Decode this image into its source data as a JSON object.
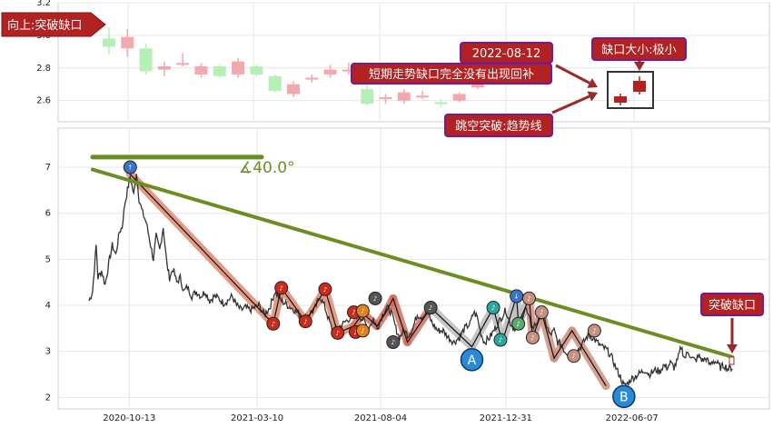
{
  "chart_data": [
    {
      "type": "candlestick",
      "panel": "top",
      "y_ticks": [
        "3.2",
        "3.0",
        "2.8",
        "2.6"
      ],
      "y_values": [
        3.2,
        3.0,
        2.8,
        2.6
      ],
      "ylim": [
        2.47,
        3.2
      ],
      "candles": [
        {
          "o": 2.98,
          "c": 2.93,
          "h": 3.05,
          "l": 2.88
        },
        {
          "o": 2.92,
          "c": 2.99,
          "h": 3.04,
          "l": 2.87
        },
        {
          "o": 2.92,
          "c": 2.78,
          "h": 2.95,
          "l": 2.76
        },
        {
          "o": 2.79,
          "c": 2.81,
          "h": 2.84,
          "l": 2.75
        },
        {
          "o": 2.82,
          "c": 2.83,
          "h": 2.89,
          "l": 2.81
        },
        {
          "o": 2.76,
          "c": 2.81,
          "h": 2.83,
          "l": 2.74
        },
        {
          "o": 2.81,
          "c": 2.75,
          "h": 2.82,
          "l": 2.74
        },
        {
          "o": 2.76,
          "c": 2.84,
          "h": 2.86,
          "l": 2.74
        },
        {
          "o": 2.81,
          "c": 2.76,
          "h": 2.82,
          "l": 2.75
        },
        {
          "o": 2.75,
          "c": 2.66,
          "h": 2.76,
          "l": 2.65
        },
        {
          "o": 2.64,
          "c": 2.7,
          "h": 2.72,
          "l": 2.62
        },
        {
          "o": 2.73,
          "c": 2.74,
          "h": 2.76,
          "l": 2.71
        },
        {
          "o": 2.76,
          "c": 2.79,
          "h": 2.82,
          "l": 2.74
        },
        {
          "o": 2.79,
          "c": 2.79,
          "h": 2.83,
          "l": 2.76
        },
        {
          "o": 2.67,
          "c": 2.58,
          "h": 2.7,
          "l": 2.57
        },
        {
          "o": 2.62,
          "c": 2.62,
          "h": 2.64,
          "l": 2.58
        },
        {
          "o": 2.6,
          "c": 2.65,
          "h": 2.67,
          "l": 2.58
        },
        {
          "o": 2.63,
          "c": 2.63,
          "h": 2.66,
          "l": 2.61
        },
        {
          "o": 2.59,
          "c": 2.58,
          "h": 2.61,
          "l": 2.56
        },
        {
          "o": 2.6,
          "c": 2.64,
          "h": 2.65,
          "l": 2.59
        },
        {
          "o": 2.68,
          "c": 2.73,
          "h": 2.76,
          "l": 2.67
        }
      ],
      "up_color": "#f4a7ad",
      "down_color": "#b6efb6"
    },
    {
      "type": "line",
      "panel": "bottom",
      "x_tick_labels": [
        "2020-10-13",
        "2021-03-10",
        "2021-08-04",
        "2021-12-31",
        "2022-06-07"
      ],
      "x_tick_index": [
        45,
        188,
        326,
        466,
        607
      ],
      "y_ticks": [
        "7",
        "6",
        "5",
        "4",
        "3",
        "2"
      ],
      "y_values": [
        7,
        6,
        5,
        4,
        3,
        2
      ],
      "ylim": [
        1.75,
        7.85
      ],
      "n": 720,
      "price_color": "#333333",
      "anchors": [
        [
          0,
          4.1
        ],
        [
          4,
          4.3
        ],
        [
          8,
          5.3
        ],
        [
          10,
          4.6
        ],
        [
          14,
          4.75
        ],
        [
          18,
          4.45
        ],
        [
          22,
          4.9
        ],
        [
          26,
          5.3
        ],
        [
          30,
          5.1
        ],
        [
          34,
          5.6
        ],
        [
          37,
          5.7
        ],
        [
          40,
          6.2
        ],
        [
          43,
          6.5
        ],
        [
          46,
          6.8
        ],
        [
          50,
          6.4
        ],
        [
          53,
          6.9
        ],
        [
          56,
          6.3
        ],
        [
          60,
          6.0
        ],
        [
          64,
          5.8
        ],
        [
          68,
          5.4
        ],
        [
          72,
          5.0
        ],
        [
          75,
          5.5
        ],
        [
          79,
          5.2
        ],
        [
          83,
          5.7
        ],
        [
          87,
          4.9
        ],
        [
          90,
          4.6
        ],
        [
          94,
          4.8
        ],
        [
          98,
          4.5
        ],
        [
          102,
          4.6
        ],
        [
          106,
          4.3
        ],
        [
          110,
          4.4
        ],
        [
          115,
          4.2
        ],
        [
          120,
          4.3
        ],
        [
          125,
          4.2
        ],
        [
          130,
          4.3
        ],
        [
          135,
          4.1
        ],
        [
          140,
          4.2
        ],
        [
          145,
          4.15
        ],
        [
          150,
          4.05
        ],
        [
          155,
          4.1
        ],
        [
          160,
          4.2
        ],
        [
          165,
          4.0
        ],
        [
          170,
          3.9
        ],
        [
          175,
          3.95
        ],
        [
          180,
          3.9
        ],
        [
          185,
          3.95
        ],
        [
          190,
          4.0
        ],
        [
          196,
          3.8
        ],
        [
          202,
          3.95
        ],
        [
          208,
          4.3
        ],
        [
          215,
          4.1
        ],
        [
          222,
          4.0
        ],
        [
          230,
          3.9
        ],
        [
          240,
          3.7
        ],
        [
          245,
          3.8
        ],
        [
          252,
          3.9
        ],
        [
          258,
          4.2
        ],
        [
          263,
          4.0
        ],
        [
          268,
          3.7
        ],
        [
          272,
          3.45
        ],
        [
          278,
          3.5
        ],
        [
          284,
          3.6
        ],
        [
          290,
          3.7
        ],
        [
          296,
          3.75
        ],
        [
          300,
          3.8
        ],
        [
          306,
          3.7
        ],
        [
          312,
          3.5
        ],
        [
          318,
          3.7
        ],
        [
          322,
          3.5
        ],
        [
          328,
          3.8
        ],
        [
          333,
          3.95
        ],
        [
          338,
          3.85
        ],
        [
          343,
          3.5
        ],
        [
          347,
          3.3
        ],
        [
          352,
          3.45
        ],
        [
          357,
          3.35
        ],
        [
          362,
          3.5
        ],
        [
          367,
          3.8
        ],
        [
          372,
          3.75
        ],
        [
          378,
          3.85
        ],
        [
          384,
          3.6
        ],
        [
          390,
          3.45
        ],
        [
          396,
          3.45
        ],
        [
          402,
          3.3
        ],
        [
          408,
          3.2
        ],
        [
          414,
          3.3
        ],
        [
          420,
          3.5
        ],
        [
          426,
          3.6
        ],
        [
          430,
          3.85
        ],
        [
          434,
          3.75
        ],
        [
          438,
          3.4
        ],
        [
          442,
          3.2
        ],
        [
          448,
          3.3
        ],
        [
          454,
          3.5
        ],
        [
          460,
          3.7
        ],
        [
          466,
          3.9
        ],
        [
          470,
          3.65
        ],
        [
          475,
          3.5
        ],
        [
          480,
          3.55
        ],
        [
          484,
          3.75
        ],
        [
          488,
          3.95
        ],
        [
          492,
          3.7
        ],
        [
          496,
          3.5
        ],
        [
          501,
          3.65
        ],
        [
          506,
          3.8
        ],
        [
          511,
          3.6
        ],
        [
          515,
          3.35
        ],
        [
          520,
          3.45
        ],
        [
          524,
          3.2
        ],
        [
          528,
          3.15
        ],
        [
          532,
          3.0
        ],
        [
          536,
          2.95
        ],
        [
          540,
          2.9
        ],
        [
          544,
          3.0
        ],
        [
          548,
          3.05
        ],
        [
          553,
          3.2
        ],
        [
          558,
          3.35
        ],
        [
          563,
          3.3
        ],
        [
          568,
          3.2
        ],
        [
          573,
          3.1
        ],
        [
          578,
          3.05
        ],
        [
          582,
          2.95
        ],
        [
          586,
          2.8
        ],
        [
          590,
          2.6
        ],
        [
          594,
          2.45
        ],
        [
          598,
          2.25
        ],
        [
          602,
          2.3
        ],
        [
          606,
          2.4
        ],
        [
          610,
          2.45
        ],
        [
          614,
          2.5
        ],
        [
          618,
          2.55
        ],
        [
          622,
          2.6
        ],
        [
          626,
          2.5
        ],
        [
          630,
          2.55
        ],
        [
          634,
          2.6
        ],
        [
          638,
          2.55
        ],
        [
          642,
          2.7
        ],
        [
          646,
          2.65
        ],
        [
          650,
          2.75
        ],
        [
          654,
          2.65
        ],
        [
          658,
          2.8
        ],
        [
          662,
          3.1
        ],
        [
          666,
          2.85
        ],
        [
          670,
          3.0
        ],
        [
          674,
          2.85
        ],
        [
          678,
          2.8
        ],
        [
          682,
          2.9
        ],
        [
          686,
          2.8
        ],
        [
          690,
          2.85
        ],
        [
          694,
          2.7
        ],
        [
          698,
          2.8
        ],
        [
          702,
          2.75
        ],
        [
          706,
          2.65
        ],
        [
          710,
          2.7
        ],
        [
          714,
          2.62
        ],
        [
          719,
          2.65
        ]
      ],
      "trendline": {
        "from": [
          4,
          6.95
        ],
        "to": [
          719,
          2.88
        ],
        "color": "#6b8e23"
      },
      "horizontal_line": {
        "from": [
          4,
          7.22
        ],
        "to": [
          193,
          7.22
        ],
        "color": "#6b8e23"
      },
      "angle_label": "∡40.0°",
      "zigzag": [
        [
          46,
          6.85
        ],
        [
          206,
          3.6
        ],
        [
          215,
          4.38
        ],
        [
          242,
          3.65
        ],
        [
          264,
          4.35
        ],
        [
          278,
          3.4
        ],
        [
          296,
          3.55
        ],
        [
          306,
          3.83
        ],
        [
          322,
          3.55
        ],
        [
          332,
          3.85
        ],
        [
          340,
          4.15
        ],
        [
          356,
          3.2
        ],
        [
          382,
          3.95
        ],
        [
          428,
          3.1
        ],
        [
          452,
          3.95
        ],
        [
          462,
          3.2
        ],
        [
          478,
          4.2
        ],
        [
          480,
          3.6
        ],
        [
          492,
          4.15
        ],
        [
          496,
          3.3
        ],
        [
          506,
          3.85
        ],
        [
          520,
          2.85
        ],
        [
          540,
          3.45
        ],
        [
          578,
          2.25
        ]
      ],
      "zigzag_band_colors": [
        "#e08a70",
        "#d07060",
        "#bdbdbd",
        "#d09080"
      ],
      "markers": [
        {
          "i": 46,
          "v": 7.0,
          "color": "#3a74c8",
          "label": "↑"
        },
        {
          "i": 206,
          "v": 3.6,
          "color": "#cc2a1a",
          "label": "♪"
        },
        {
          "i": 215,
          "v": 4.38,
          "color": "#cc2a1a",
          "label": "♪"
        },
        {
          "i": 242,
          "v": 3.65,
          "color": "#cc2a1a",
          "label": "♪"
        },
        {
          "i": 264,
          "v": 4.35,
          "color": "#cc2a1a",
          "label": "♪"
        },
        {
          "i": 278,
          "v": 3.4,
          "color": "#cc2a1a",
          "label": "♪"
        },
        {
          "i": 296,
          "v": 3.85,
          "color": "#cc2a1a",
          "label": "♪"
        },
        {
          "i": 298,
          "v": 3.42,
          "color": "#cc2a1a",
          "label": "♪"
        },
        {
          "i": 306,
          "v": 3.88,
          "color": "#e8801a",
          "label": "♪"
        },
        {
          "i": 306,
          "v": 3.45,
          "color": "#e8801a",
          "label": "♪"
        },
        {
          "i": 320,
          "v": 4.15,
          "color": "#555555",
          "label": "♪"
        },
        {
          "i": 340,
          "v": 3.2,
          "color": "#555555",
          "label": "♪"
        },
        {
          "i": 382,
          "v": 3.95,
          "color": "#555555",
          "label": "♪"
        },
        {
          "i": 452,
          "v": 3.95,
          "color": "#2aa8a0",
          "label": "♪"
        },
        {
          "i": 460,
          "v": 3.25,
          "color": "#2aa8a0",
          "label": "♪"
        },
        {
          "i": 478,
          "v": 4.2,
          "color": "#3a74c8",
          "label": "↓"
        },
        {
          "i": 480,
          "v": 3.6,
          "color": "#5aaa70",
          "label": "♪"
        },
        {
          "i": 492,
          "v": 4.15,
          "color": "#c89080",
          "label": "♪"
        },
        {
          "i": 496,
          "v": 3.3,
          "color": "#c89080",
          "label": "♪"
        },
        {
          "i": 506,
          "v": 3.85,
          "color": "#c89080",
          "label": "♪"
        },
        {
          "i": 542,
          "v": 2.9,
          "color": "#c89080",
          "label": "♪"
        },
        {
          "i": 565,
          "v": 3.45,
          "color": "#c89080",
          "label": "♪"
        }
      ],
      "big_markers": [
        {
          "i": 428,
          "v": 2.82,
          "label": "A",
          "color": "#2a8ad8"
        },
        {
          "i": 598,
          "v": 2.02,
          "label": "B",
          "color": "#2a8ad8"
        }
      ]
    }
  ],
  "callouts": {
    "top_left": "向上:突破缺口",
    "date": "2022-08-12",
    "gap_size": "缺口大小:极小",
    "short_term": "短期走势缺口完全没有出现回补",
    "jump": "跳空突破:趋势线",
    "breakout": "突破缺口"
  },
  "colors": {
    "callout_bg": "#b22222",
    "callout_border": "#7a1a8a",
    "arrow": "#9a2a2a",
    "panel_border": "#cccccc",
    "grid": "#e6e6e6"
  }
}
